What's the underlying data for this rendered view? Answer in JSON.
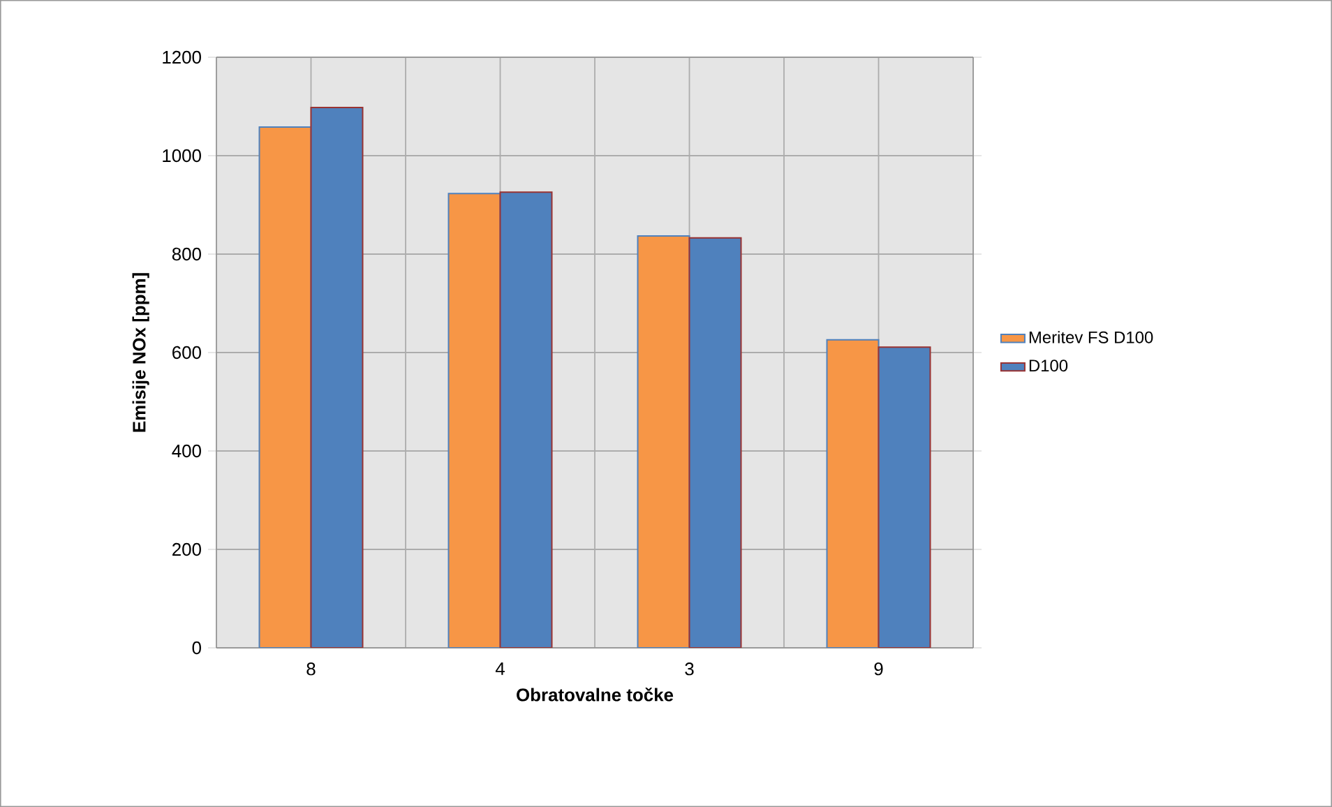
{
  "chart_data": {
    "type": "bar",
    "xlabel": "Obratovalne točke",
    "ylabel": "Emisije NOx [ppm]",
    "categories": [
      "8",
      "4",
      "3",
      "9"
    ],
    "series": [
      {
        "name": "Meritev FS D100",
        "color": "#f79646",
        "values": [
          1058,
          923,
          837,
          626
        ]
      },
      {
        "name": "D100",
        "color": "#4f81bd",
        "values": [
          1098,
          926,
          833,
          611
        ]
      }
    ],
    "ylim": [
      0,
      1200
    ],
    "yticks": [
      0,
      200,
      400,
      600,
      800,
      1000,
      1200
    ],
    "grid": true,
    "legend": "right"
  }
}
